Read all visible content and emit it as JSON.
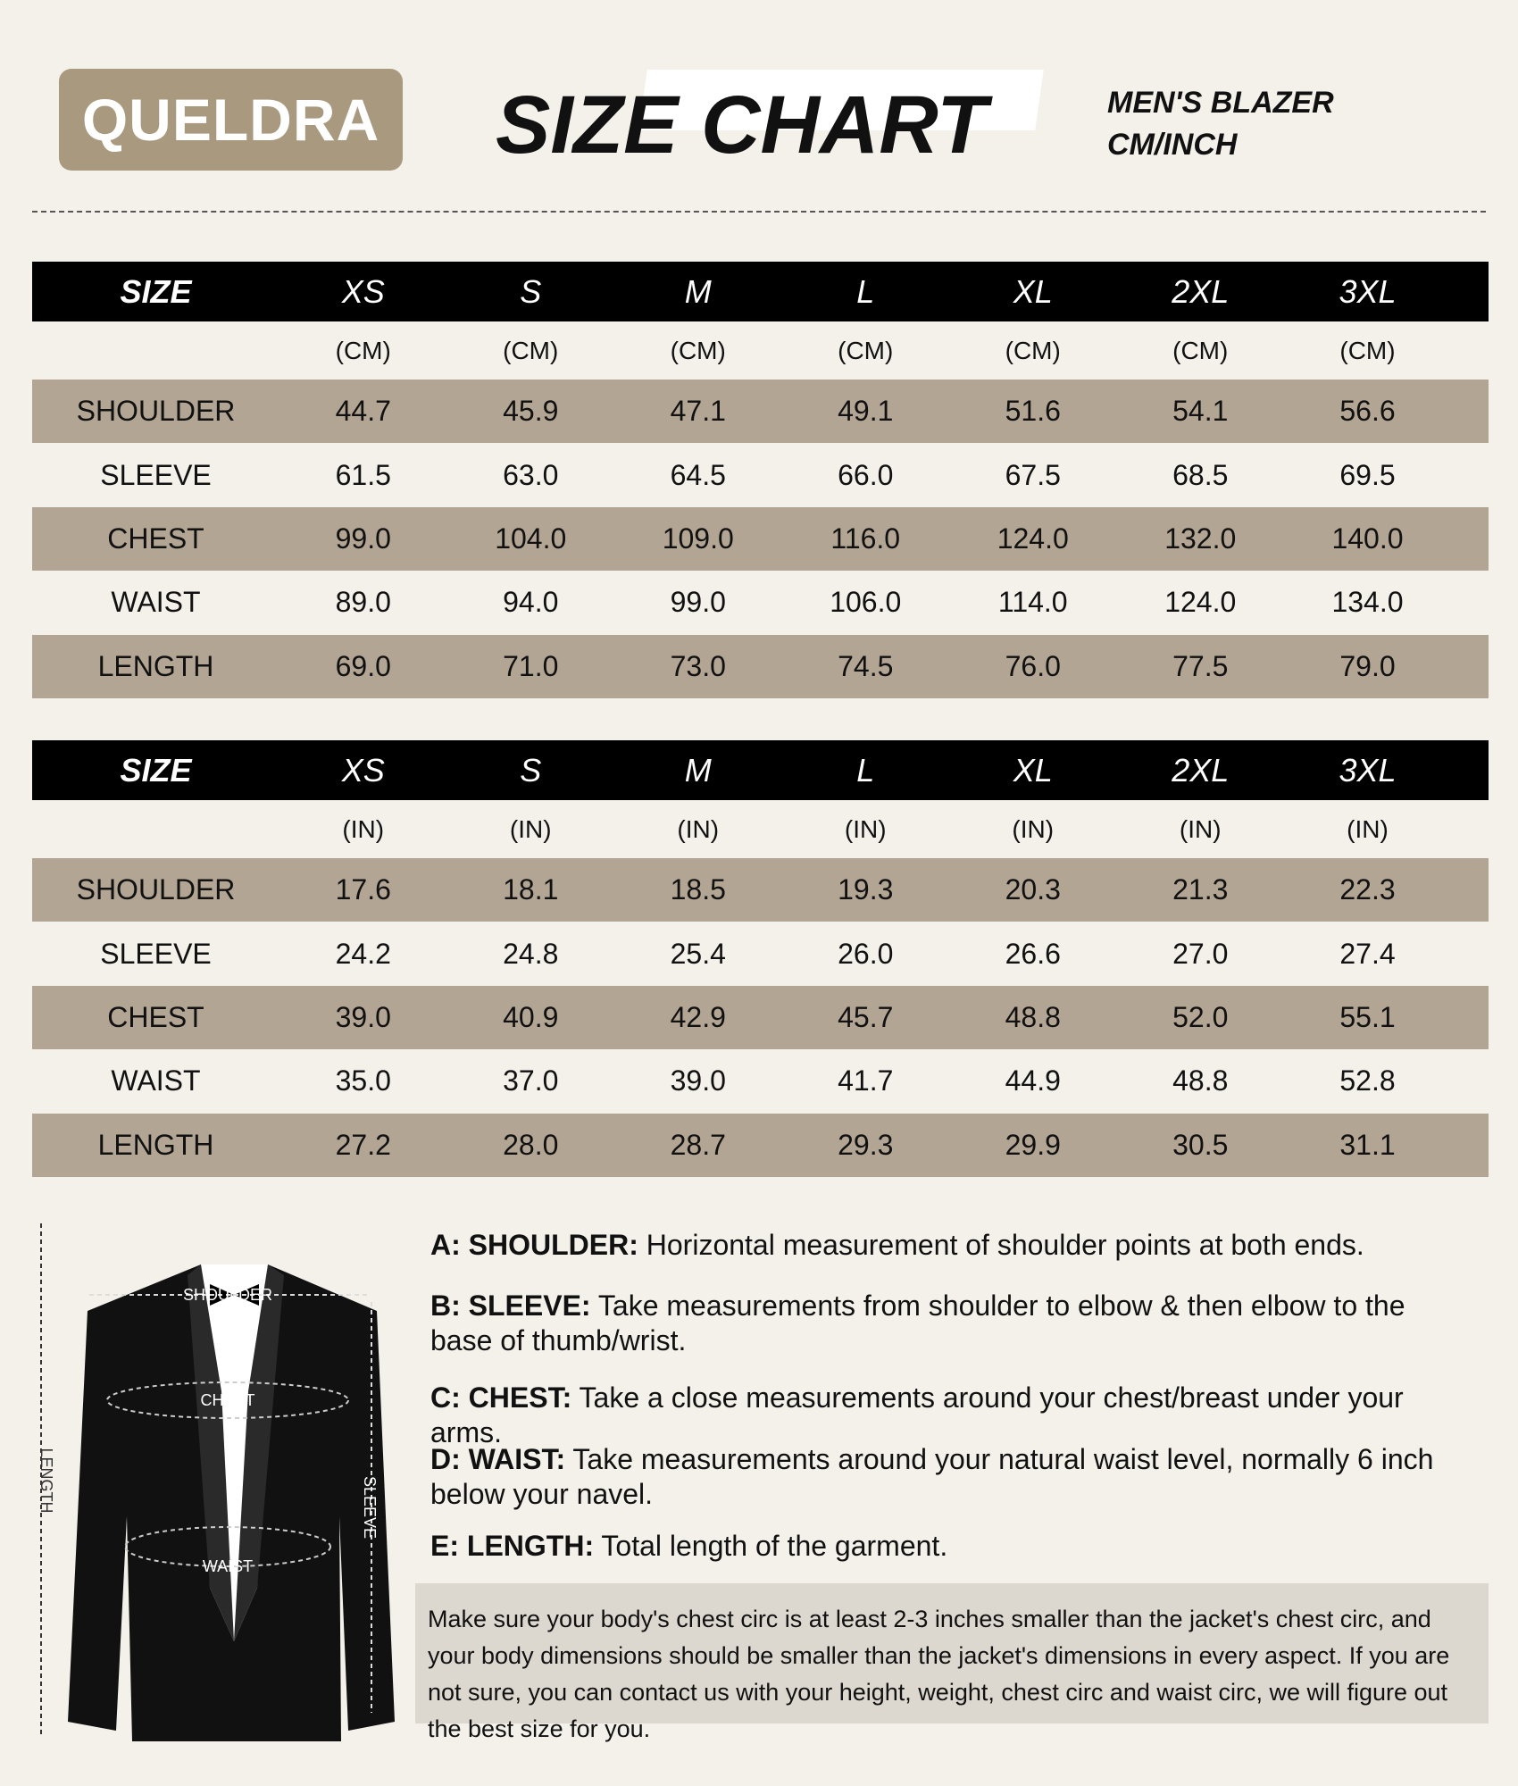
{
  "header": {
    "brand": "QUELDRA",
    "title": "SIZE CHART",
    "subtitle_line1": "MEN'S BLAZER",
    "subtitle_line2": "CM/INCH"
  },
  "tables": [
    {
      "columns": [
        "SIZE",
        "XS",
        "S",
        "M",
        "L",
        "XL",
        "2XL",
        "3XL"
      ],
      "units": [
        "(CM)",
        "(CM)",
        "(CM)",
        "(CM)",
        "(CM)",
        "(CM)",
        "(CM)"
      ],
      "rows": [
        {
          "label": "SHOULDER",
          "values": [
            "44.7",
            "45.9",
            "47.1",
            "49.1",
            "51.6",
            "54.1",
            "56.6"
          ]
        },
        {
          "label": "SLEEVE",
          "values": [
            "61.5",
            "63.0",
            "64.5",
            "66.0",
            "67.5",
            "68.5",
            "69.5"
          ]
        },
        {
          "label": "CHEST",
          "values": [
            "99.0",
            "104.0",
            "109.0",
            "116.0",
            "124.0",
            "132.0",
            "140.0"
          ]
        },
        {
          "label": "WAIST",
          "values": [
            "89.0",
            "94.0",
            "99.0",
            "106.0",
            "114.0",
            "124.0",
            "134.0"
          ]
        },
        {
          "label": "LENGTH",
          "values": [
            "69.0",
            "71.0",
            "73.0",
            "74.5",
            "76.0",
            "77.5",
            "79.0"
          ]
        }
      ]
    },
    {
      "columns": [
        "SIZE",
        "XS",
        "S",
        "M",
        "L",
        "XL",
        "2XL",
        "3XL"
      ],
      "units": [
        "(IN)",
        "(IN)",
        "(IN)",
        "(IN)",
        "(IN)",
        "(IN)",
        "(IN)"
      ],
      "rows": [
        {
          "label": "SHOULDER",
          "values": [
            "17.6",
            "18.1",
            "18.5",
            "19.3",
            "20.3",
            "21.3",
            "22.3"
          ]
        },
        {
          "label": "SLEEVE",
          "values": [
            "24.2",
            "24.8",
            "25.4",
            "26.0",
            "26.6",
            "27.0",
            "27.4"
          ]
        },
        {
          "label": "CHEST",
          "values": [
            "39.0",
            "40.9",
            "42.9",
            "45.7",
            "48.8",
            "52.0",
            "55.1"
          ]
        },
        {
          "label": "WAIST",
          "values": [
            "35.0",
            "37.0",
            "39.0",
            "41.7",
            "44.9",
            "48.8",
            "52.8"
          ]
        },
        {
          "label": "LENGTH",
          "values": [
            "27.2",
            "28.0",
            "28.7",
            "29.3",
            "29.9",
            "30.5",
            "31.1"
          ]
        }
      ]
    }
  ],
  "diagram": {
    "shoulder": "SHOULDER",
    "chest": "CHEST",
    "waist": "WAIST",
    "length": "LENGTH",
    "sleeve": "SLEEVE"
  },
  "definitions": [
    {
      "term": "A: SHOULDER:",
      "text": "Horizontal measurement of shoulder points at both ends."
    },
    {
      "term": "B: SLEEVE:",
      "text": "Take measurements from shoulder to elbow & then elbow to the base of thumb/wrist."
    },
    {
      "term": "C: CHEST:",
      "text": "Take a close measurements around your chest/breast under your arms."
    },
    {
      "term": "D: WAIST:",
      "text": "Take measurements around your natural waist level, normally 6 inch below your navel."
    },
    {
      "term": "E: LENGTH:",
      "text": "Total length of the garment."
    }
  ],
  "note": "Make sure your body's chest circ is at least 2-3 inches smaller than the jacket's chest circ, and your body dimensions should be smaller than the jacket's dimensions in every aspect. If you are not sure, you can contact us with your height, weight, chest circ and waist circ, we will figure out the best size for you."
}
